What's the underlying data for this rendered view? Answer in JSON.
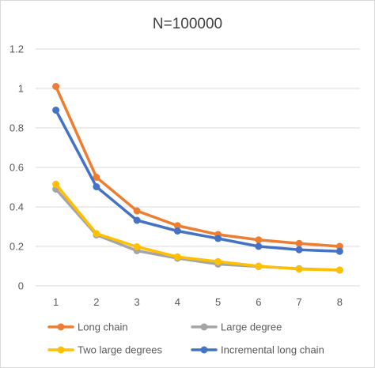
{
  "chart_data": {
    "type": "line",
    "title": "N=100000",
    "xlabel": "",
    "ylabel": "",
    "x": [
      1,
      2,
      3,
      4,
      5,
      6,
      7,
      8
    ],
    "ylim": [
      0,
      1.2
    ],
    "yticks": [
      0,
      0.2,
      0.4,
      0.6,
      0.8,
      1,
      1.2
    ],
    "ytick_labels": [
      "0",
      "0.2",
      "0.4",
      "0.6",
      "0.8",
      "1",
      "1.2"
    ],
    "grid": true,
    "legend_position": "bottom",
    "series": [
      {
        "name": "Long chain",
        "color": "#ED7D31",
        "values": [
          1.01,
          0.55,
          0.38,
          0.305,
          0.26,
          0.233,
          0.215,
          0.2
        ]
      },
      {
        "name": "Large degree",
        "color": "#A5A5A5",
        "values": [
          0.49,
          0.258,
          0.178,
          0.14,
          0.11,
          0.098,
          0.087,
          0.08
        ]
      },
      {
        "name": "Two large degrees",
        "color": "#FFC000",
        "values": [
          0.515,
          0.265,
          0.198,
          0.147,
          0.123,
          0.1,
          0.085,
          0.08
        ]
      },
      {
        "name": "Incremental long chain",
        "color": "#4472C4",
        "values": [
          0.89,
          0.502,
          0.332,
          0.278,
          0.24,
          0.2,
          0.183,
          0.175
        ]
      }
    ]
  }
}
